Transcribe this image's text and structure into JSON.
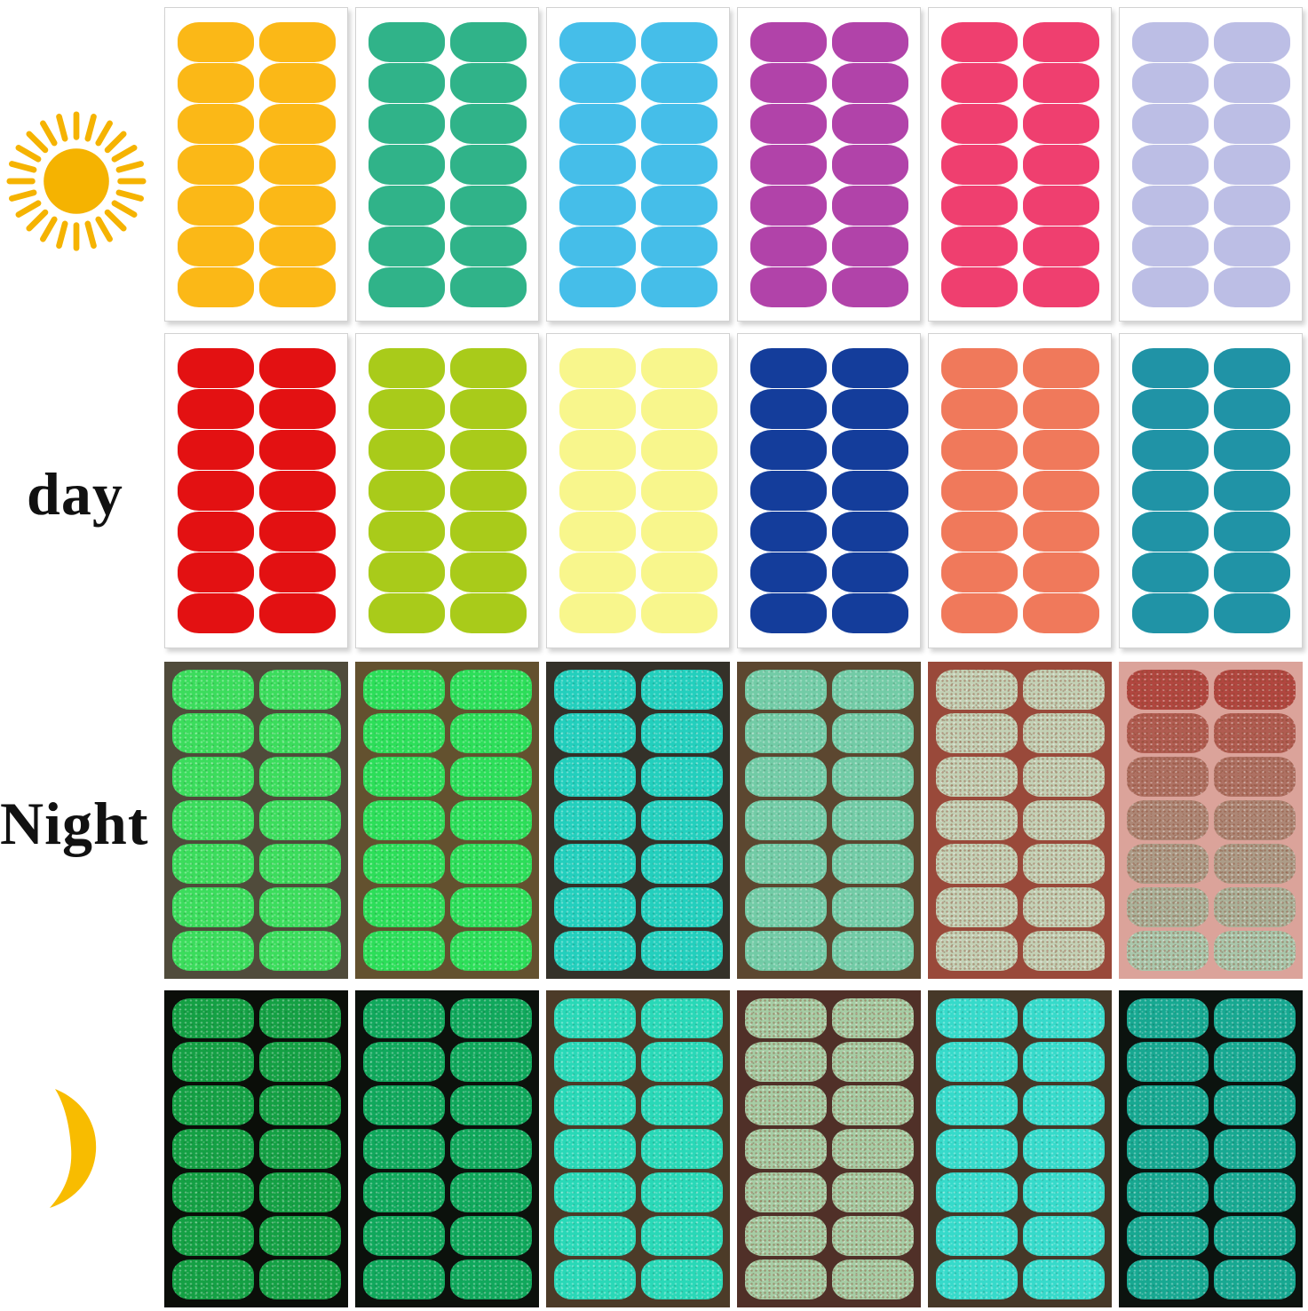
{
  "labels": {
    "day": "day",
    "night": "Night"
  },
  "icons": {
    "sun": {
      "name": "sun-icon",
      "color": "#F5B301"
    },
    "moon": {
      "name": "moon-icon",
      "color": "#F8BC00"
    }
  },
  "grid": {
    "columns": 6,
    "sticker_rows_per_sheet": 7,
    "sticker_cols_per_sheet": 2,
    "stickers_per_sheet": 14,
    "rows": [
      {
        "name": "day-row-top",
        "style": "day",
        "sheets": [
          {
            "sticker": "#FBB817"
          },
          {
            "sticker": "#30B389"
          },
          {
            "sticker": "#45BEE9"
          },
          {
            "sticker": "#B143A9"
          },
          {
            "sticker": "#EF3F6F"
          },
          {
            "sticker": "#BCBEE5"
          }
        ]
      },
      {
        "name": "day-row-bottom",
        "style": "day",
        "sheets": [
          {
            "sticker": "#E31112"
          },
          {
            "sticker": "#A9CB1A"
          },
          {
            "sticker": "#F8F68C"
          },
          {
            "sticker": "#143D9B"
          },
          {
            "sticker": "#F0795B"
          },
          {
            "sticker": "#2093A6"
          }
        ]
      },
      {
        "name": "night-row-top",
        "style": "night",
        "sheets": [
          {
            "bg": "#504B3B",
            "sticker": "#3BDC5C"
          },
          {
            "bg": "#63512F",
            "sticker": "#2CDE59"
          },
          {
            "bg": "#343129",
            "sticker": "#23CFBD"
          },
          {
            "bg": "#5C4730",
            "sticker": "#72CBA6"
          },
          {
            "bg": "#99493A",
            "sticker": "#C3D1B6",
            "speckle": "brown"
          },
          {
            "bg": "#DBA39A",
            "sticker_top": "#B1463F",
            "sticker_bottom": "#A9C7AC",
            "speckle": "brown"
          }
        ]
      },
      {
        "name": "night-row-bottom",
        "style": "night",
        "sheets": [
          {
            "bg": "#0B0E09",
            "sticker": "#14A044"
          },
          {
            "bg": "#0C110C",
            "sticker": "#10A85C"
          },
          {
            "bg": "#4C3B28",
            "sticker": "#29D8B7"
          },
          {
            "bg": "#503028",
            "sticker": "#A6CDA5",
            "speckle": "brown"
          },
          {
            "bg": "#463828",
            "sticker": "#36DACA"
          },
          {
            "bg": "#0C130F",
            "sticker": "#17A891"
          }
        ]
      }
    ]
  }
}
